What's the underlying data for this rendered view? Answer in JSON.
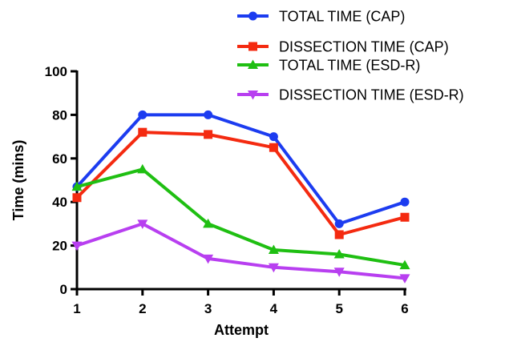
{
  "chart_data": {
    "type": "line",
    "title": "",
    "xlabel": "Attempt",
    "ylabel": "Time (mins)",
    "x": [
      1,
      2,
      3,
      4,
      5,
      6
    ],
    "xticks": [
      "1",
      "2",
      "3",
      "4",
      "5",
      "6"
    ],
    "yticks": [
      "0",
      "20",
      "40",
      "60",
      "80",
      "100"
    ],
    "ylim": [
      0,
      100
    ],
    "grid": false,
    "legend_position": "top-right",
    "series": [
      {
        "name": "TOTAL TIME (CAP)",
        "color": "#1c3cf0",
        "marker": "circle",
        "values": [
          47,
          80,
          80,
          70,
          30,
          40
        ]
      },
      {
        "name": "DISSECTION TIME (CAP)",
        "color": "#f42a10",
        "marker": "square",
        "values": [
          42,
          72,
          71,
          65,
          25,
          33
        ]
      },
      {
        "name": "TOTAL TIME (ESD-R)",
        "color": "#1fbf12",
        "marker": "triangle-up",
        "values": [
          47,
          55,
          30,
          18,
          16,
          11
        ]
      },
      {
        "name": "DISSECTION TIME (ESD-R)",
        "color": "#b83ff0",
        "marker": "triangle-down",
        "values": [
          20,
          30,
          14,
          10,
          8,
          5
        ]
      }
    ]
  }
}
